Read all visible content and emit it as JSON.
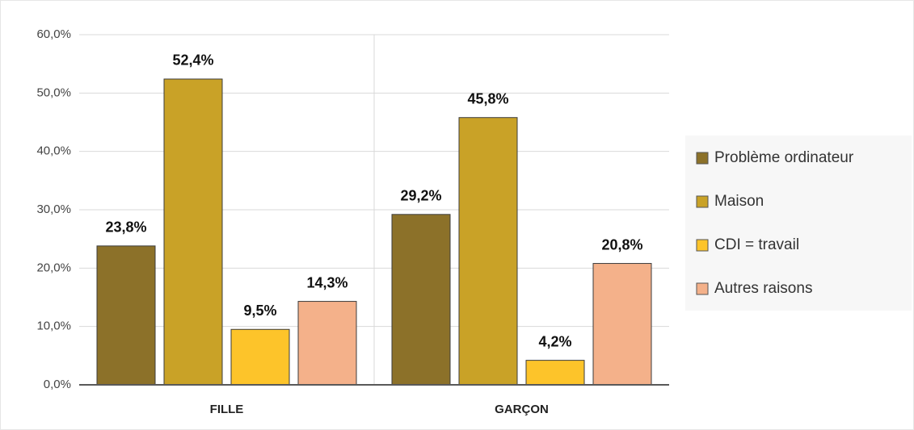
{
  "chart_data": {
    "type": "bar",
    "categories": [
      "FILLE",
      "GARÇON"
    ],
    "series": [
      {
        "name": "Problème ordinateur",
        "color": "#8c7129",
        "values": [
          23.8,
          29.2
        ],
        "value_labels": [
          "23,8%",
          "29,2%"
        ]
      },
      {
        "name": "Maison",
        "color": "#c9a227",
        "values": [
          52.4,
          45.8
        ],
        "value_labels": [
          "52,4%",
          "45,8%"
        ]
      },
      {
        "name": "CDI = travail",
        "color": "#fdc42a",
        "values": [
          9.5,
          4.2
        ],
        "value_labels": [
          "9,5%",
          "4,2%"
        ]
      },
      {
        "name": "Autres raisons",
        "color": "#f4b18a",
        "values": [
          14.3,
          20.8
        ],
        "value_labels": [
          "14,3%",
          "20,8%"
        ]
      }
    ],
    "ylim": [
      0,
      60
    ],
    "yticks": [
      {
        "value": 0,
        "label": "0,0%"
      },
      {
        "value": 10,
        "label": "10,0%"
      },
      {
        "value": 20,
        "label": "20,0%"
      },
      {
        "value": 30,
        "label": "30,0%"
      },
      {
        "value": 40,
        "label": "40,0%"
      },
      {
        "value": 50,
        "label": "50,0%"
      },
      {
        "value": 60,
        "label": "60,0%"
      }
    ],
    "grid": true,
    "legend": "right"
  }
}
